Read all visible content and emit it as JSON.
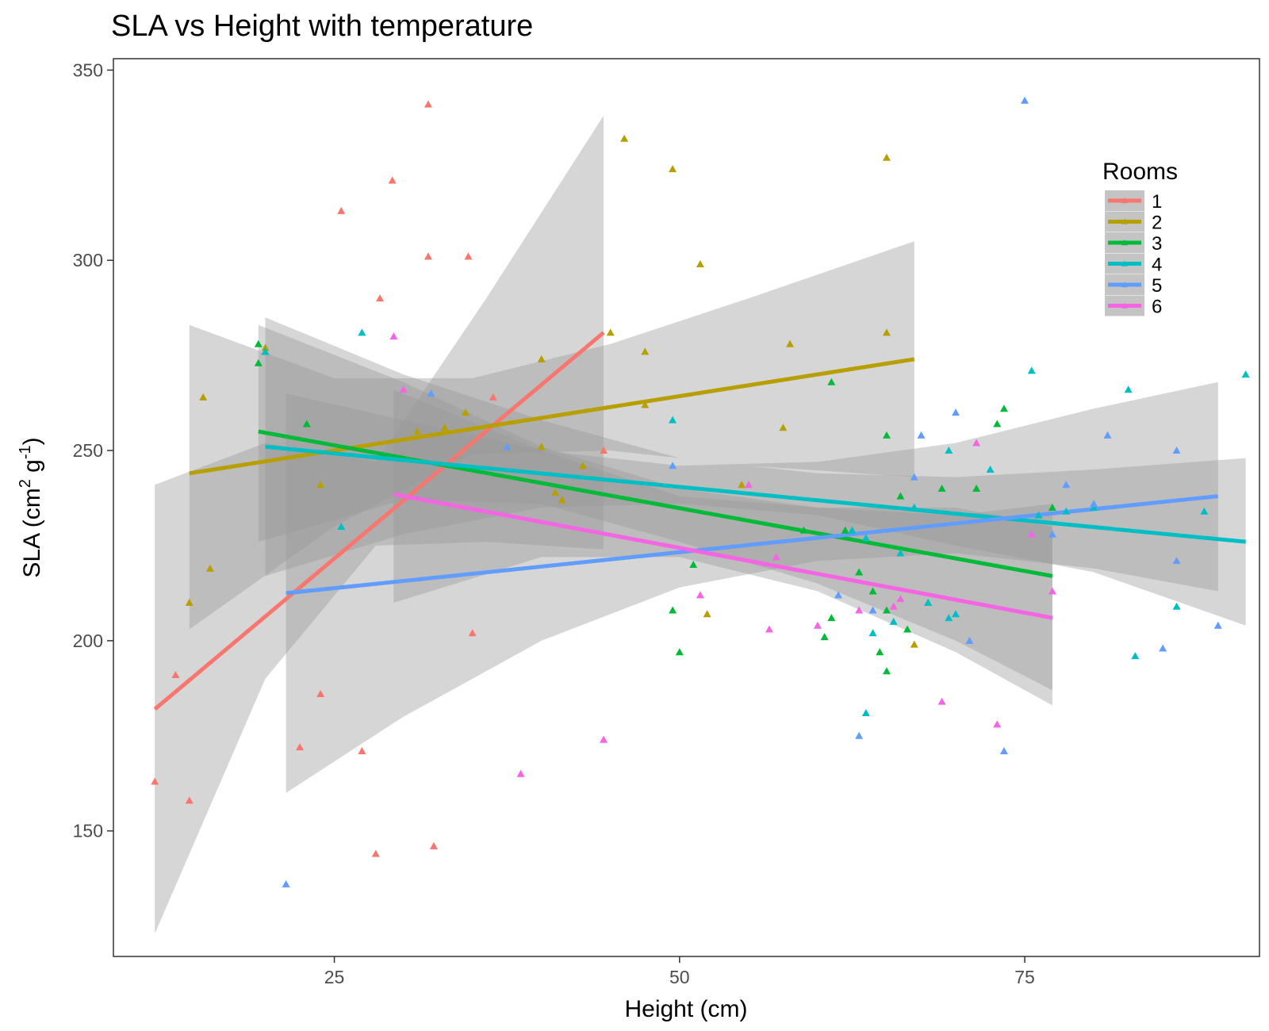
{
  "chart_data": {
    "type": "scatter",
    "title": "SLA vs Height with temperature",
    "xlabel": "Height (cm)",
    "ylabel": {
      "base": "SLA (cm",
      "sup1": "2",
      "mid": " g",
      "sup2": "-1",
      "end": ")"
    },
    "xlim": [
      9,
      92
    ],
    "ylim": [
      117,
      353
    ],
    "x_ticks": [
      25,
      50,
      75
    ],
    "y_ticks": [
      150,
      200,
      250,
      300,
      350
    ],
    "grid": false,
    "legend": {
      "title": "Rooms",
      "position": "top-right"
    },
    "series": [
      {
        "name": "1",
        "color": "#F8766D",
        "points": [
          [
            12,
            163
          ],
          [
            13.5,
            191
          ],
          [
            14.5,
            158
          ],
          [
            22.5,
            172
          ],
          [
            24,
            186
          ],
          [
            25.5,
            313
          ],
          [
            27,
            171
          ],
          [
            28,
            144
          ],
          [
            28.3,
            290
          ],
          [
            29.2,
            321
          ],
          [
            31.8,
            341
          ],
          [
            31.8,
            301
          ],
          [
            32.2,
            146
          ],
          [
            34.7,
            301
          ],
          [
            35,
            202
          ],
          [
            36.5,
            264
          ],
          [
            44.5,
            250
          ]
        ],
        "fit": {
          "x0": 12,
          "x1": 44.5,
          "y0": 182,
          "y1": 281
        },
        "band": [
          [
            12,
            123,
            241
          ],
          [
            20,
            190,
            252
          ],
          [
            28,
            225,
            247
          ],
          [
            36,
            226,
            290
          ],
          [
            44.5,
            224,
            338
          ]
        ]
      },
      {
        "name": "2",
        "color": "#B79F00",
        "points": [
          [
            14.5,
            210
          ],
          [
            15.5,
            264
          ],
          [
            16,
            219
          ],
          [
            20,
            277
          ],
          [
            24,
            241
          ],
          [
            31,
            255
          ],
          [
            33,
            256
          ],
          [
            34.5,
            260
          ],
          [
            37.5,
            251
          ],
          [
            40,
            251
          ],
          [
            40,
            274
          ],
          [
            41,
            239
          ],
          [
            41.5,
            237
          ],
          [
            43,
            246
          ],
          [
            45,
            281
          ],
          [
            46,
            332
          ],
          [
            47.5,
            276
          ],
          [
            47.5,
            262
          ],
          [
            49.5,
            324
          ],
          [
            51.5,
            299
          ],
          [
            52,
            207
          ],
          [
            54.5,
            241
          ],
          [
            57.5,
            256
          ],
          [
            58,
            278
          ],
          [
            65,
            327
          ],
          [
            65,
            281
          ],
          [
            67,
            199
          ]
        ],
        "fit": {
          "x0": 14.5,
          "x1": 67,
          "y0": 244,
          "y1": 274
        },
        "band": [
          [
            14.5,
            203,
            283
          ],
          [
            25,
            230,
            269
          ],
          [
            35,
            249,
            269
          ],
          [
            45,
            250,
            278
          ],
          [
            55,
            246,
            290
          ],
          [
            67,
            243,
            305
          ]
        ]
      },
      {
        "name": "3",
        "color": "#00BA38",
        "points": [
          [
            19.5,
            278
          ],
          [
            19.5,
            273
          ],
          [
            20,
            276
          ],
          [
            23,
            257
          ],
          [
            51,
            220
          ],
          [
            49.5,
            208
          ],
          [
            50,
            197
          ],
          [
            59,
            229
          ],
          [
            60.5,
            201
          ],
          [
            61,
            206
          ],
          [
            61,
            268
          ],
          [
            62,
            229
          ],
          [
            63,
            218
          ],
          [
            64,
            213
          ],
          [
            64.5,
            197
          ],
          [
            65,
            192
          ],
          [
            65,
            208
          ],
          [
            65,
            254
          ],
          [
            66,
            238
          ],
          [
            66.5,
            203
          ],
          [
            67,
            235
          ],
          [
            68,
            210
          ],
          [
            69,
            240
          ],
          [
            71.5,
            240
          ],
          [
            73,
            257
          ],
          [
            73.5,
            261
          ],
          [
            77,
            235
          ]
        ],
        "fit": {
          "x0": 19.5,
          "x1": 77,
          "y0": 255,
          "y1": 217
        },
        "band": [
          [
            19.5,
            226,
            283
          ],
          [
            30,
            237,
            268
          ],
          [
            40,
            236,
            251
          ],
          [
            50,
            226,
            240
          ],
          [
            60,
            215,
            235
          ],
          [
            70,
            200,
            233
          ],
          [
            77,
            187,
            236
          ]
        ]
      },
      {
        "name": "4",
        "color": "#00BFC4",
        "points": [
          [
            20,
            276
          ],
          [
            25.5,
            230
          ],
          [
            27,
            281
          ],
          [
            49.5,
            258
          ],
          [
            62.5,
            229
          ],
          [
            63.5,
            227
          ],
          [
            63.5,
            181
          ],
          [
            64,
            202
          ],
          [
            65.5,
            205
          ],
          [
            66,
            223
          ],
          [
            67,
            235
          ],
          [
            68,
            210
          ],
          [
            69.5,
            250
          ],
          [
            69.5,
            206
          ],
          [
            70,
            207
          ],
          [
            72.5,
            245
          ],
          [
            75.5,
            271
          ],
          [
            76,
            233
          ],
          [
            78,
            234
          ],
          [
            80,
            235
          ],
          [
            82.5,
            266
          ],
          [
            83,
            196
          ],
          [
            86,
            209
          ],
          [
            88,
            234
          ],
          [
            91,
            270
          ]
        ],
        "fit": {
          "x0": 20,
          "x1": 91,
          "y0": 251,
          "y1": 226
        },
        "band": [
          [
            20,
            217,
            285
          ],
          [
            30,
            228,
            270
          ],
          [
            40,
            235,
            258
          ],
          [
            50,
            236,
            248
          ],
          [
            60,
            233,
            244
          ],
          [
            70,
            225,
            243
          ],
          [
            80,
            218,
            245
          ],
          [
            91,
            204,
            248
          ]
        ]
      },
      {
        "name": "5",
        "color": "#619CFF",
        "points": [
          [
            21.5,
            136
          ],
          [
            32,
            265
          ],
          [
            37.5,
            251
          ],
          [
            49.5,
            246
          ],
          [
            61.5,
            212
          ],
          [
            63,
            175
          ],
          [
            64,
            208
          ],
          [
            67,
            243
          ],
          [
            67.5,
            254
          ],
          [
            70,
            260
          ],
          [
            71,
            200
          ],
          [
            73.5,
            171
          ],
          [
            75,
            342
          ],
          [
            77,
            228
          ],
          [
            78,
            241
          ],
          [
            80,
            236
          ],
          [
            81,
            254
          ],
          [
            85,
            198
          ],
          [
            86,
            221
          ],
          [
            86,
            250
          ],
          [
            89,
            204
          ]
        ],
        "fit": {
          "x0": 21.5,
          "x1": 89,
          "y0": 212.5,
          "y1": 238
        },
        "band": [
          [
            21.5,
            160,
            265
          ],
          [
            30,
            180,
            258
          ],
          [
            40,
            200,
            250
          ],
          [
            50,
            214,
            246
          ],
          [
            60,
            221,
            247
          ],
          [
            70,
            223,
            252
          ],
          [
            80,
            219,
            261
          ],
          [
            89,
            213,
            268
          ]
        ]
      },
      {
        "name": "6",
        "color": "#F564E3",
        "points": [
          [
            29.3,
            280
          ],
          [
            30,
            266
          ],
          [
            38.5,
            165
          ],
          [
            44.5,
            174
          ],
          [
            51.5,
            212
          ],
          [
            55,
            241
          ],
          [
            56.5,
            203
          ],
          [
            57,
            222
          ],
          [
            60,
            204
          ],
          [
            63,
            208
          ],
          [
            65.5,
            209
          ],
          [
            66,
            211
          ],
          [
            69,
            184
          ],
          [
            71.5,
            252
          ],
          [
            73,
            178
          ],
          [
            75.5,
            228
          ],
          [
            77,
            213
          ]
        ],
        "fit": {
          "x0": 29.3,
          "x1": 77,
          "y0": 238.5,
          "y1": 206
        },
        "band": [
          [
            29.3,
            210,
            266
          ],
          [
            40,
            222,
            250
          ],
          [
            50,
            222,
            238
          ],
          [
            60,
            213,
            235
          ],
          [
            70,
            197,
            235
          ],
          [
            77,
            183,
            230
          ]
        ]
      }
    ]
  }
}
